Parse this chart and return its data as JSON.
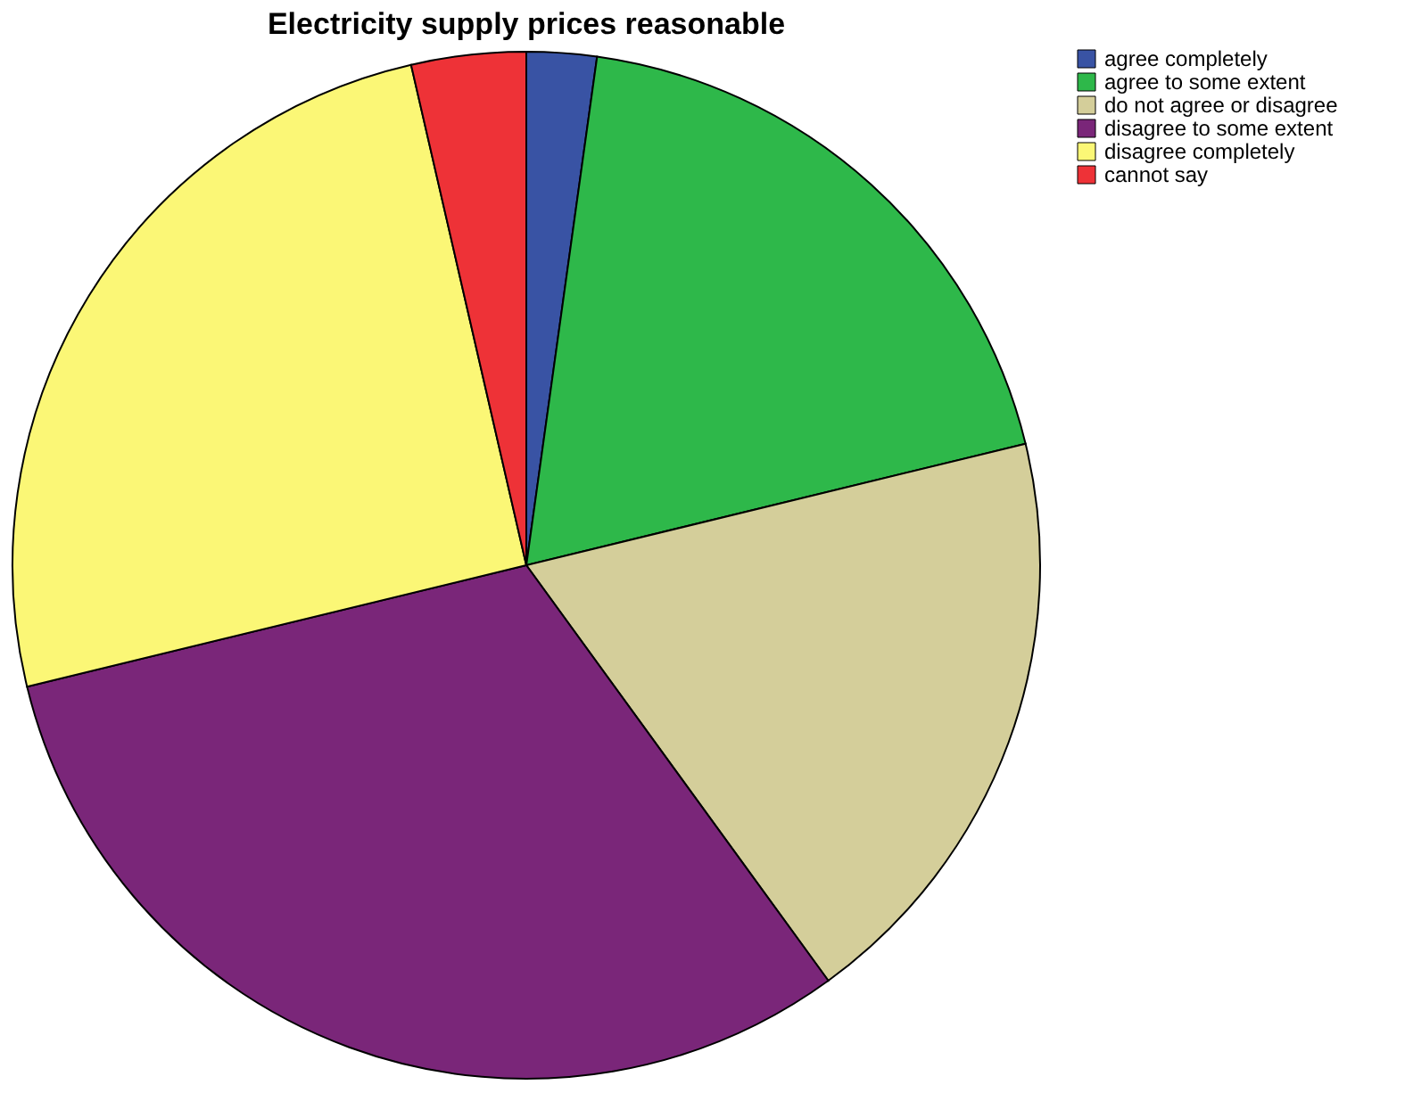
{
  "chart_data": {
    "type": "pie",
    "title": "Electricity supply prices reasonable",
    "categories": [
      "agree completely",
      "agree to some extent",
      "do not agree or disagree",
      "disagree to some extent",
      "disagree completely",
      "cannot say"
    ],
    "values": [
      2.2,
      19.0,
      18.8,
      31.2,
      25.2,
      3.6
    ],
    "colors": [
      "#3953a4",
      "#2eb84a",
      "#d4ce9a",
      "#7a2679",
      "#fbf776",
      "#ee3237"
    ],
    "legend": "top right"
  }
}
